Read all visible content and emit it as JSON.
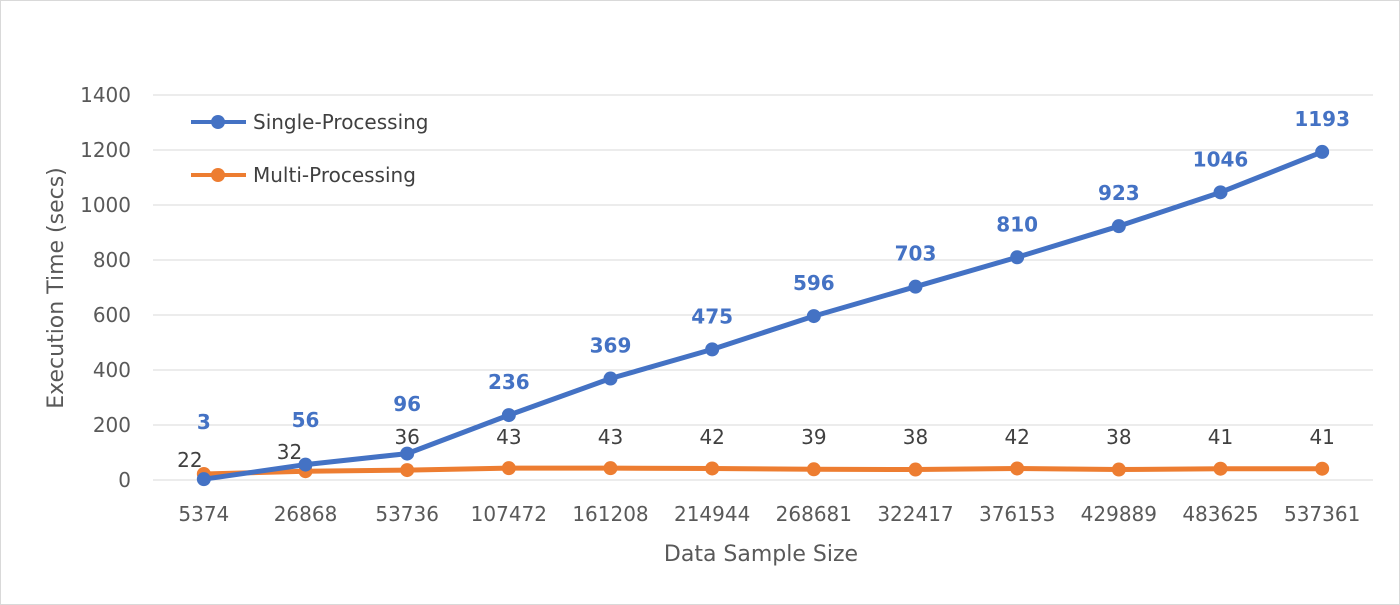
{
  "chart_data": {
    "type": "line",
    "title": "",
    "xlabel": "Data Sample Size",
    "ylabel": "Execution Time (secs)",
    "categories": [
      "5374",
      "26868",
      "53736",
      "107472",
      "161208",
      "214944",
      "268681",
      "322417",
      "376153",
      "429889",
      "483625",
      "537361"
    ],
    "ylim": [
      0,
      1400
    ],
    "yticks": [
      0,
      200,
      400,
      600,
      800,
      1000,
      1200,
      1400
    ],
    "grid": true,
    "legend_position": "top-left",
    "series": [
      {
        "name": "Single-Processing",
        "color": "#4472c4",
        "values": [
          3,
          56,
          96,
          236,
          369,
          475,
          596,
          703,
          810,
          923,
          1046,
          1193
        ]
      },
      {
        "name": "Multi-Processing",
        "color": "#ed7d31",
        "values": [
          22,
          32,
          36,
          43,
          43,
          42,
          39,
          38,
          42,
          38,
          41,
          41
        ]
      }
    ]
  }
}
